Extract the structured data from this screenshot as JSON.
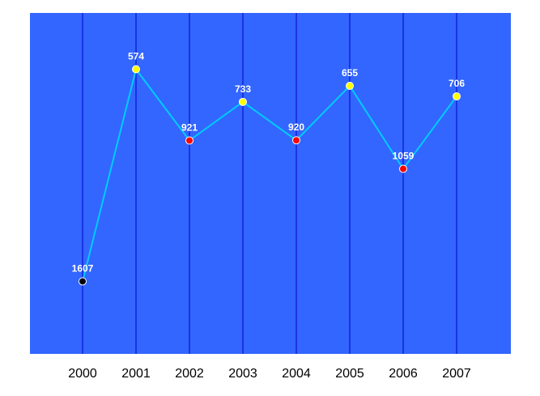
{
  "chart_data": {
    "type": "line",
    "title": "",
    "xlabel": "",
    "ylabel": "",
    "categories": [
      "2000",
      "2001",
      "2002",
      "2003",
      "2004",
      "2005",
      "2006",
      "2007"
    ],
    "series": [
      {
        "values": [
          1607,
          574,
          921,
          733,
          920,
          655,
          1059,
          706
        ],
        "labels": [
          "1607",
          "574",
          "921",
          "733",
          "920",
          "655",
          "1059",
          "706"
        ],
        "marker_colors": [
          "#000000",
          "#ffff00",
          "#ff0000",
          "#ffff00",
          "#ff0000",
          "#ffff00",
          "#ff0000",
          "#ffff00"
        ]
      }
    ],
    "y_inverted": true,
    "ylim": [
      1960,
      300
    ],
    "grid": "vertical",
    "legend": "none",
    "colors": {
      "plot_background": "#3366ff",
      "gridline": "#0000cc",
      "line": "#00ccff",
      "label_text": "#ffffff",
      "tick_text": "#000000"
    }
  }
}
